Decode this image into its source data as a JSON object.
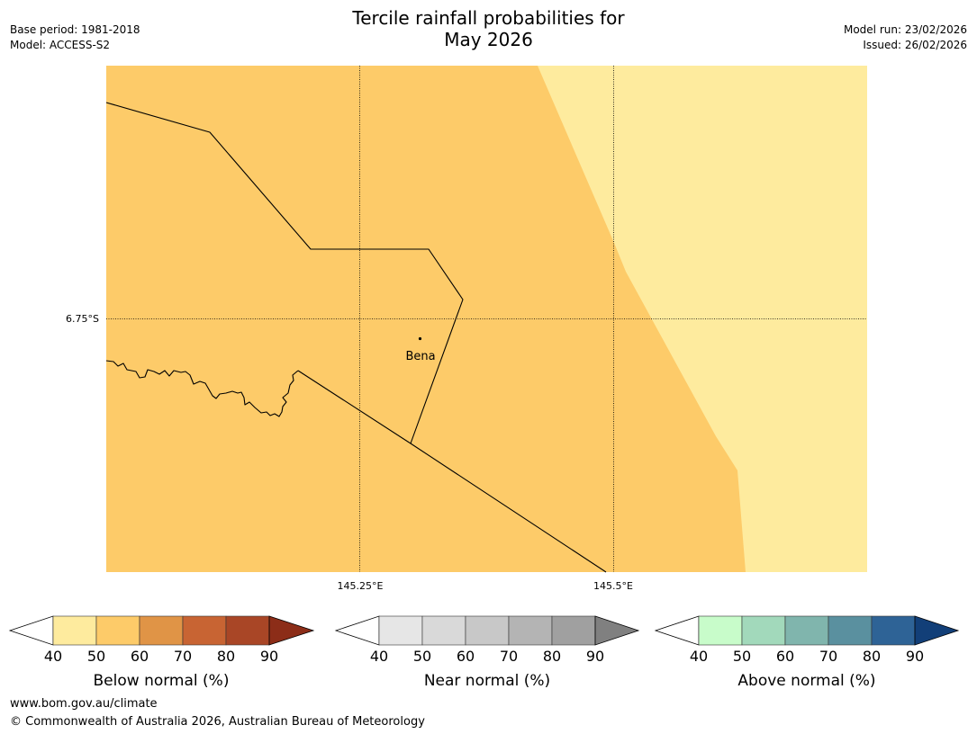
{
  "header": {
    "title_line1": "Tercile rainfall probabilities for",
    "title_line2": "May 2026",
    "base_period": "Base period: 1981-2018",
    "model": "Model: ACCESS-S2",
    "model_run": "Model run: 23/02/2026",
    "issued": "Issued: 26/02/2026"
  },
  "map": {
    "place_label": "Bena",
    "lat_label": "6.75°S",
    "lon_labels": [
      "145.25°E",
      "145.5°E"
    ],
    "colors": {
      "below_50_60": "#fdcb69",
      "below_40_50": "#feeb9e",
      "boundary": "#000000"
    }
  },
  "colorbars": [
    {
      "name": "below",
      "label": "Below normal (%)",
      "ticks": [
        "40",
        "50",
        "60",
        "70",
        "80",
        "90"
      ],
      "colors": [
        "#ffffff",
        "#feeb9e",
        "#fdcb69",
        "#e09446",
        "#c86433",
        "#a94626",
        "#8c2d18"
      ]
    },
    {
      "name": "near",
      "label": "Near normal (%)",
      "ticks": [
        "40",
        "50",
        "60",
        "70",
        "80",
        "90"
      ],
      "colors": [
        "#ffffff",
        "#e6e6e6",
        "#d9d9d9",
        "#c8c8c8",
        "#b4b4b4",
        "#a0a0a0",
        "#808080"
      ]
    },
    {
      "name": "above",
      "label": "Above normal (%)",
      "ticks": [
        "40",
        "50",
        "60",
        "70",
        "80",
        "90"
      ],
      "colors": [
        "#ffffff",
        "#c8fcca",
        "#a2d9bb",
        "#80b5ad",
        "#5a909f",
        "#2e6396",
        "#123f78"
      ]
    }
  ],
  "footer": {
    "url": "www.bom.gov.au/climate",
    "copyright": "© Commonwealth of Australia 2026, Australian Bureau of Meteorology"
  }
}
